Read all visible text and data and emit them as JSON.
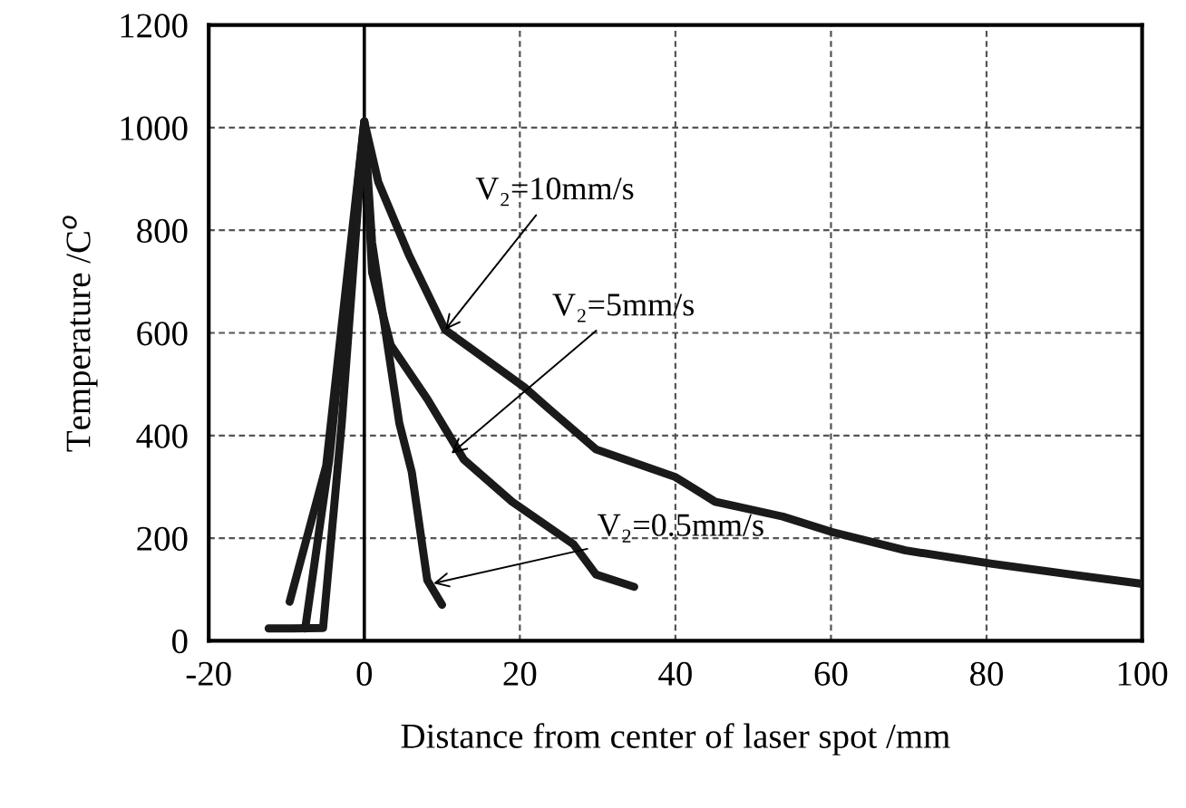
{
  "chart_data": {
    "type": "line",
    "xlabel": "Distance from center of laser spot /mm",
    "ylabel": "Temperature /C$^{o}$",
    "xlim": [
      -20,
      100
    ],
    "ylim": [
      0,
      1200
    ],
    "xticks": [
      -20,
      0,
      20,
      40,
      60,
      80,
      100
    ],
    "yticks": [
      0,
      200,
      400,
      600,
      800,
      1000,
      1200
    ],
    "grid": true,
    "line_style": "solid",
    "marker": "none",
    "series": [
      {
        "color": "#1a1a1a",
        "x": [
          -9.6,
          -4.9,
          0,
          1.8,
          5.7,
          10.4,
          20.6,
          23.9,
          29.8,
          40,
          45.1,
          53.8,
          60.1,
          69.6,
          80.7,
          91,
          100
        ],
        "values": [
          76,
          341,
          1012,
          894,
          753,
          606,
          494,
          450,
          373,
          319,
          271,
          242,
          212,
          176,
          150,
          129,
          111
        ]
      },
      {
        "color": "#1a1a1a",
        "x": [
          -7.6,
          -4.5,
          0,
          1,
          3.4,
          8.1,
          12.8,
          19,
          26.9,
          29.8,
          34.7
        ],
        "values": [
          24,
          353,
          1012,
          718,
          576,
          471,
          353,
          271,
          188,
          129,
          105
        ]
      },
      {
        "color": "#1a1a1a",
        "x": [
          -12.3,
          -9.2,
          -5.3,
          -2.9,
          0,
          1,
          4.5,
          6.1,
          8.1,
          10
        ],
        "values": [
          24,
          24,
          25,
          424,
          1012,
          776,
          424,
          329,
          118,
          70
        ]
      }
    ],
    "ref_lines": [
      {
        "axis": "x",
        "value": 0,
        "color": "#000000",
        "line_style": "solid"
      }
    ],
    "annotations": [
      {
        "text": "V₂=10mm/s",
        "x": 10.4,
        "y": 606
      },
      {
        "text": "V₂=5mm/s",
        "x": 11.2,
        "y": 365
      },
      {
        "text": "V₂=0.5mm/s",
        "x": 8.9,
        "y": 112
      }
    ]
  }
}
